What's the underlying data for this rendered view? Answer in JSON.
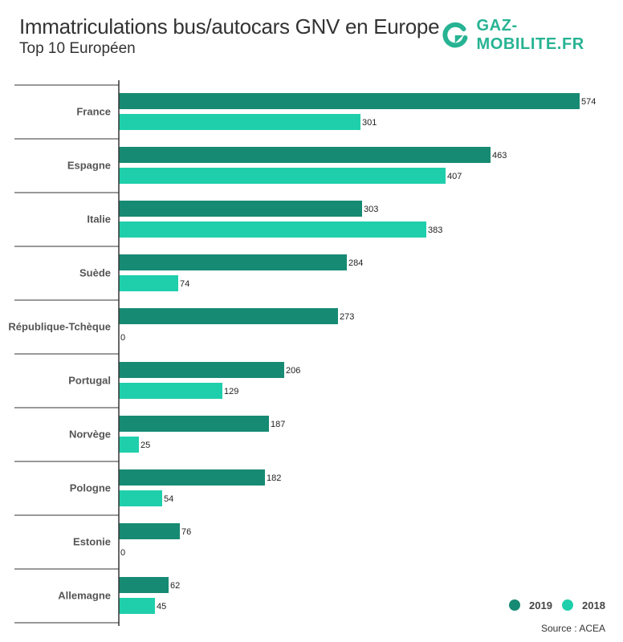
{
  "header": {
    "title": "Immatriculations bus/autocars GNV en Europe",
    "subtitle": "Top 10 Européen"
  },
  "brand": {
    "name": "GAZ-MOBILITE.FR",
    "logo_icon": "gaz-mobilite-logo-icon",
    "color": "#27b393"
  },
  "source": "Source : ACEA",
  "chart_data": {
    "type": "bar",
    "orientation": "horizontal",
    "title": "Immatriculations bus/autocars GNV en Europe",
    "subtitle": "Top 10 Européen",
    "categories": [
      "France",
      "Espagne",
      "Italie",
      "Suède",
      "République-Tchèque",
      "Portugal",
      "Norvège",
      "Pologne",
      "Estonie",
      "Allemagne"
    ],
    "series": [
      {
        "name": "2019",
        "color": "#178a73",
        "values": [
          574,
          463,
          303,
          284,
          273,
          206,
          187,
          182,
          76,
          62
        ]
      },
      {
        "name": "2018",
        "color": "#1fcfab",
        "values": [
          301,
          407,
          383,
          74,
          0,
          129,
          25,
          54,
          0,
          45
        ]
      }
    ],
    "xlim": [
      0,
      574
    ],
    "grid": false,
    "legend": "bottom-right",
    "data_labels": true
  }
}
